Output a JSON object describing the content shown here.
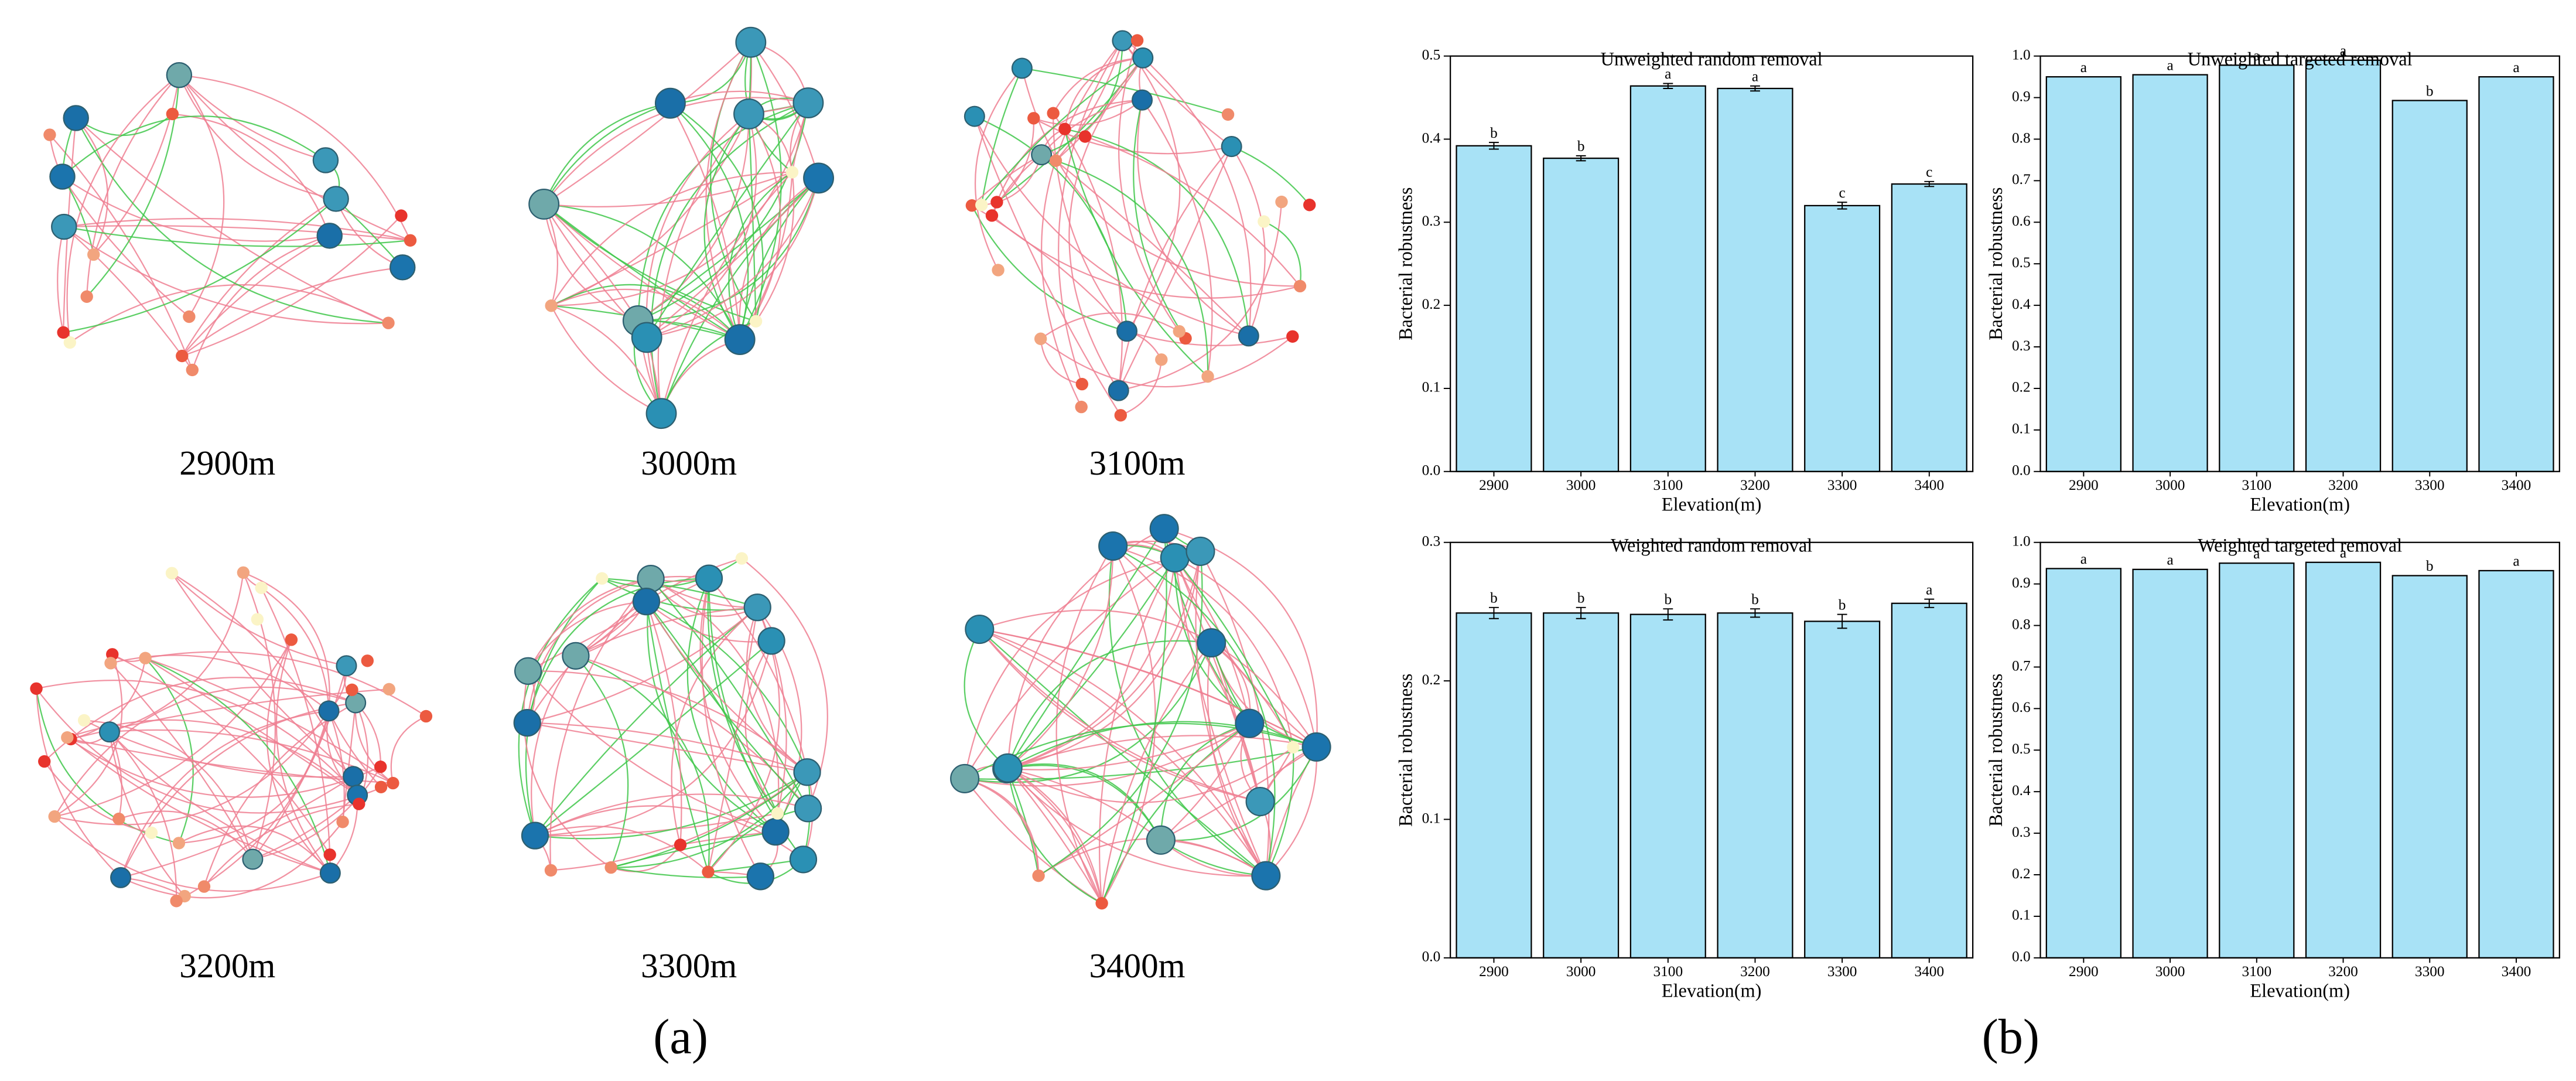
{
  "panels": {
    "a": {
      "label": "(a)",
      "networks": [
        "2900m",
        "3000m",
        "3100m",
        "3200m",
        "3300m",
        "3400m"
      ]
    },
    "b": {
      "label": "(b)"
    }
  },
  "chart_data": [
    {
      "type": "bar",
      "title": "Unweighted random removal",
      "x_label": "Elevation(m)",
      "y_label": "Bacterial robustness",
      "categories": [
        "2900",
        "3000",
        "3100",
        "3200",
        "3300",
        "3400"
      ],
      "values": [
        0.392,
        0.377,
        0.464,
        0.461,
        0.32,
        0.346
      ],
      "errors": [
        0.004,
        0.003,
        0.003,
        0.003,
        0.004,
        0.003
      ],
      "letters": [
        "b",
        "b",
        "a",
        "a",
        "c",
        "c"
      ],
      "color": "#a8e2f6",
      "ylim": [
        0,
        0.5
      ],
      "yticks": [
        {
          "value": 0,
          "label": "0.0"
        },
        0.1,
        0.2,
        0.3,
        0.4,
        0.5
      ]
    },
    {
      "type": "bar",
      "title": "Unweighted targeted removal",
      "x_label": "Elevation(m)",
      "y_label": "Bacterial robustness",
      "categories": [
        "2900",
        "3000",
        "3100",
        "3200",
        "3300",
        "3400"
      ],
      "values": [
        0.95,
        0.955,
        0.978,
        0.99,
        0.893,
        0.95
      ],
      "letters": [
        "a",
        "a",
        "a",
        "a",
        "b",
        "a"
      ],
      "color": "#a8e2f6",
      "ylim": [
        0,
        1
      ],
      "yticks": [
        {
          "value": 0,
          "label": "0.0"
        },
        0.1,
        0.2,
        0.3,
        0.4,
        0.5,
        0.6,
        0.7,
        0.8,
        0.9,
        {
          "value": 1,
          "label": "1.0"
        }
      ]
    },
    {
      "type": "bar",
      "title": "Weighted random removal",
      "x_label": "Elevation(m)",
      "y_label": "Bacterial robustness",
      "categories": [
        "2900",
        "3000",
        "3100",
        "3200",
        "3300",
        "3400"
      ],
      "values": [
        0.249,
        0.249,
        0.248,
        0.249,
        0.243,
        0.256
      ],
      "errors": [
        0.004,
        0.004,
        0.004,
        0.003,
        0.005,
        0.003
      ],
      "letters": [
        "b",
        "b",
        "b",
        "b",
        "b",
        "a"
      ],
      "color": "#a8e2f6",
      "ylim": [
        0,
        0.3
      ],
      "yticks": [
        {
          "value": 0,
          "label": "0.0"
        },
        0.1,
        0.2,
        0.3
      ]
    },
    {
      "type": "bar",
      "title": "Weighted targeted removal",
      "x_label": "Elevation(m)",
      "y_label": "Bacterial robustness",
      "categories": [
        "2900",
        "3000",
        "3100",
        "3200",
        "3300",
        "3400"
      ],
      "values": [
        0.937,
        0.935,
        0.95,
        0.952,
        0.92,
        0.932
      ],
      "letters": [
        "a",
        "a",
        "a",
        "a",
        "b",
        "a"
      ],
      "color": "#a8e2f6",
      "ylim": [
        0,
        1
      ],
      "yticks": [
        {
          "value": 0,
          "label": "0.0"
        },
        0.1,
        0.2,
        0.3,
        0.4,
        0.5,
        0.6,
        0.7,
        0.8,
        0.9,
        {
          "value": 1,
          "label": "1.0"
        }
      ]
    }
  ]
}
